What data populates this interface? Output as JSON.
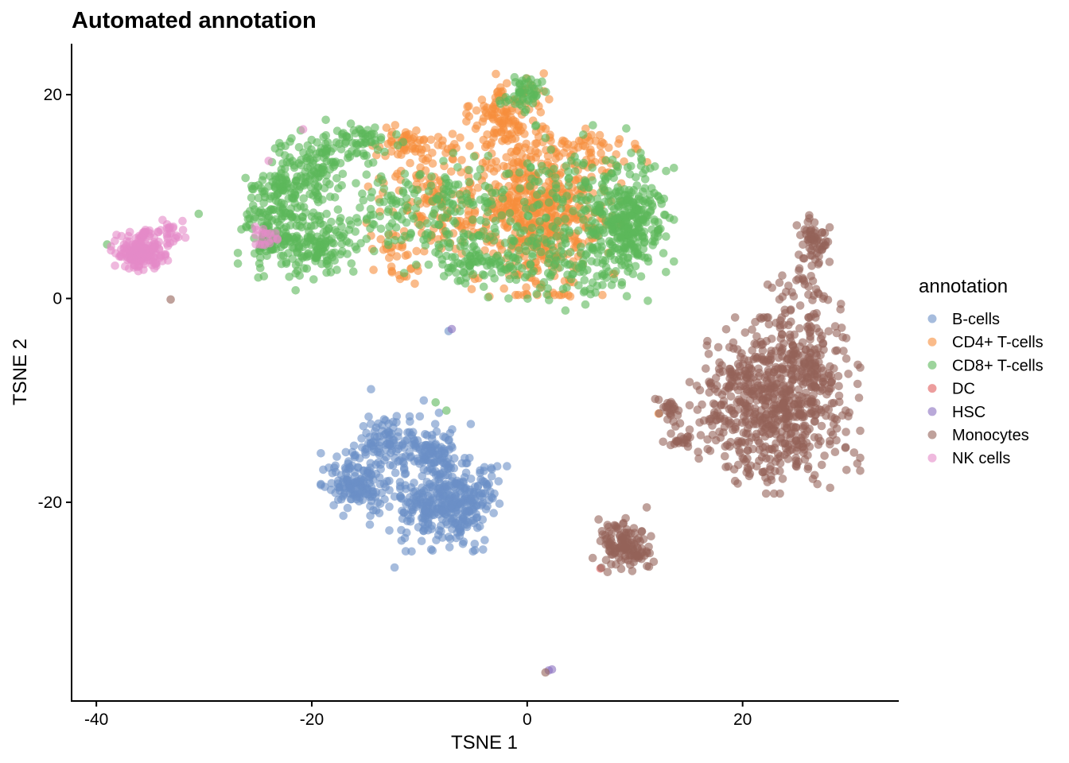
{
  "chart_data": {
    "type": "scatter",
    "title": "Automated annotation",
    "xlabel": "TSNE 1",
    "ylabel": "TSNE 2",
    "xlim": [
      -42.3,
      34.5
    ],
    "ylim": [
      -39.5,
      25
    ],
    "x_ticks": [
      -40,
      -20,
      0,
      20
    ],
    "x_tick_labels": [
      "-40",
      "-20",
      "0",
      "20"
    ],
    "y_ticks": [
      -20,
      0,
      20
    ],
    "y_tick_labels": [
      "-20",
      "0",
      "20"
    ],
    "grid": false,
    "legend": {
      "title": "annotation",
      "position": "right",
      "entries": [
        "B-cells",
        "CD4+ T-cells",
        "CD8+ T-cells",
        "DC",
        "HSC",
        "Monocytes",
        "NK cells"
      ]
    },
    "colors": {
      "B-cells": "#6b8fc7",
      "CD4+ T-cells": "#f68e3c",
      "CD8+ T-cells": "#5cb85a",
      "DC": "#e05b5b",
      "HSC": "#8b6fc0",
      "Monocytes": "#946358",
      "NK cells": "#e58ac8"
    },
    "point_alpha": 0.6,
    "series": [
      {
        "name": "B-cells",
        "clusters": [
          {
            "cx": -15.8,
            "cy": -18.2,
            "sx": 1.4,
            "sy": 1.3,
            "n": 140
          },
          {
            "cx": -13.2,
            "cy": -14.0,
            "sx": 1.2,
            "sy": 1.0,
            "n": 80
          },
          {
            "cx": -8.3,
            "cy": -15.2,
            "sx": 1.3,
            "sy": 1.2,
            "n": 90
          },
          {
            "cx": -8.0,
            "cy": -20.5,
            "sx": 2.0,
            "sy": 1.8,
            "n": 240
          },
          {
            "cx": -5.0,
            "cy": -19.5,
            "sx": 1.3,
            "sy": 1.6,
            "n": 90
          },
          {
            "cx": -11.5,
            "cy": -18.0,
            "sx": 2.5,
            "sy": 3.5,
            "n": 70
          }
        ],
        "points": [
          [
            -14.5,
            -8.9
          ],
          [
            -7.3,
            -3.2
          ],
          [
            -9.6,
            -10.0
          ],
          [
            -9.8,
            -23.8
          ]
        ]
      },
      {
        "name": "CD4+ T-cells",
        "clusters": [
          {
            "cx": 1.3,
            "cy": 8.5,
            "sx": 3.1,
            "sy": 3.4,
            "n": 520
          },
          {
            "cx": -1.8,
            "cy": 18.0,
            "sx": 1.6,
            "sy": 1.7,
            "n": 120
          },
          {
            "cx": -8.2,
            "cy": 9.0,
            "sx": 2.8,
            "sy": 2.8,
            "n": 150
          },
          {
            "cx": -10.5,
            "cy": 15.2,
            "sx": 1.8,
            "sy": 0.9,
            "n": 60
          },
          {
            "cx": 5.0,
            "cy": 14.5,
            "sx": 3.0,
            "sy": 0.9,
            "n": 50
          },
          {
            "cx": -12.5,
            "cy": 4.0,
            "sx": 1.2,
            "sy": 1.3,
            "n": 25
          }
        ],
        "points": [
          [
            -3.5,
            0.2
          ],
          [
            4.0,
            0.2
          ],
          [
            12.2,
            -11.3
          ],
          [
            8.3,
            13.0
          ],
          [
            -4.2,
            19.5
          ]
        ]
      },
      {
        "name": "CD8+ T-cells",
        "clusters": [
          {
            "cx": 9.3,
            "cy": 7.8,
            "sx": 1.8,
            "sy": 2.7,
            "n": 320
          },
          {
            "cx": -19.5,
            "cy": 5.3,
            "sx": 2.2,
            "sy": 1.5,
            "n": 160
          },
          {
            "cx": -23.5,
            "cy": 6.5,
            "sx": 1.4,
            "sy": 1.9,
            "n": 100
          },
          {
            "cx": -23.0,
            "cy": 10.5,
            "sx": 1.5,
            "sy": 1.2,
            "n": 80
          },
          {
            "cx": -19.8,
            "cy": 12.5,
            "sx": 1.5,
            "sy": 2.2,
            "n": 120
          },
          {
            "cx": -15.5,
            "cy": 15.5,
            "sx": 1.7,
            "sy": 0.9,
            "n": 60
          },
          {
            "cx": -0.3,
            "cy": 20.2,
            "sx": 1.0,
            "sy": 0.8,
            "n": 50
          },
          {
            "cx": -7.0,
            "cy": 8.5,
            "sx": 3.3,
            "sy": 2.5,
            "n": 140
          },
          {
            "cx": -4.5,
            "cy": 3.5,
            "sx": 2.0,
            "sy": 1.2,
            "n": 80
          },
          {
            "cx": 4.0,
            "cy": 3.0,
            "sx": 3.0,
            "sy": 1.5,
            "n": 70
          },
          {
            "cx": 4.5,
            "cy": 11.0,
            "sx": 3.5,
            "sy": 2.5,
            "n": 80
          },
          {
            "cx": 1.5,
            "cy": 5.5,
            "sx": 3.2,
            "sy": 3.0,
            "n": 80
          },
          {
            "cx": -13.0,
            "cy": 8.5,
            "sx": 1.8,
            "sy": 2.0,
            "n": 45
          }
        ],
        "points": [
          [
            -30.5,
            8.3
          ],
          [
            -21.5,
            0.8
          ],
          [
            -8.5,
            -10.2
          ],
          [
            -7.5,
            -11.0
          ],
          [
            -39.0,
            5.3
          ]
        ]
      },
      {
        "name": "DC",
        "clusters": [],
        "points": [
          [
            6.8,
            -26.5
          ]
        ]
      },
      {
        "name": "HSC",
        "clusters": [],
        "points": [
          [
            -7.0,
            -3.0
          ],
          [
            2.0,
            -36.5
          ],
          [
            2.3,
            -36.4
          ]
        ]
      },
      {
        "name": "Monocytes",
        "clusters": [
          {
            "cx": 23.0,
            "cy": -10.5,
            "sx": 3.3,
            "sy": 3.6,
            "n": 620
          },
          {
            "cx": 25.5,
            "cy": -5.0,
            "sx": 1.8,
            "sy": 3.0,
            "n": 120
          },
          {
            "cx": 26.5,
            "cy": 5.5,
            "sx": 0.7,
            "sy": 1.2,
            "n": 60
          },
          {
            "cx": 25.2,
            "cy": 1.5,
            "sx": 1.2,
            "sy": 0.8,
            "n": 25
          },
          {
            "cx": 9.0,
            "cy": -24.2,
            "sx": 1.3,
            "sy": 1.1,
            "n": 130
          },
          {
            "cx": 13.3,
            "cy": -11.0,
            "sx": 0.6,
            "sy": 0.9,
            "n": 25
          },
          {
            "cx": 14.0,
            "cy": -13.8,
            "sx": 0.6,
            "sy": 0.4,
            "n": 20
          },
          {
            "cx": 18.5,
            "cy": -7.5,
            "sx": 1.2,
            "sy": 0.8,
            "n": 30
          }
        ],
        "points": [
          [
            -33.1,
            -0.1
          ],
          [
            1.7,
            -36.7
          ],
          [
            29.3,
            -3.8
          ],
          [
            30.7,
            -6.5
          ],
          [
            17.9,
            -11.8
          ],
          [
            11.1,
            -20.5
          ]
        ]
      },
      {
        "name": "NK cells",
        "clusters": [
          {
            "cx": -36.0,
            "cy": 4.6,
            "sx": 1.1,
            "sy": 0.8,
            "n": 200
          },
          {
            "cx": -33.5,
            "cy": 6.5,
            "sx": 0.9,
            "sy": 0.5,
            "n": 30
          },
          {
            "cx": -24.3,
            "cy": 6.0,
            "sx": 0.8,
            "sy": 0.5,
            "n": 20
          }
        ],
        "points": [
          [
            -24.0,
            13.5
          ],
          [
            -20.8,
            16.6
          ],
          [
            -32.0,
            7.6
          ]
        ]
      }
    ]
  }
}
